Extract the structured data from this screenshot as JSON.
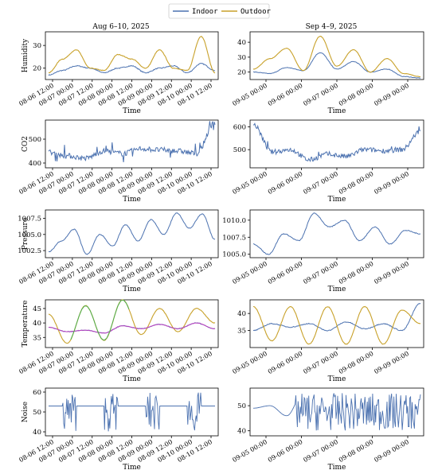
{
  "legend": [
    {
      "name": "Indoor",
      "color": "#4c72b0"
    },
    {
      "name": "Outdoor",
      "color": "#c8a12a"
    }
  ],
  "colors": {
    "indoor": "#4c72b0",
    "outdoor": "#c8a12a",
    "indoor_rolling": "#c040c0",
    "outdoor_rolling": "#4caf50"
  },
  "columns": [
    {
      "title": "Aug 6–10, 2025",
      "xlabel": "Time",
      "xticks": [
        "08-06 12:00",
        "08-07 00:00",
        "08-07 12:00",
        "08-08 00:00",
        "08-08 12:00",
        "08-09 00:00",
        "08-09 12:00",
        "08-10 00:00",
        "08-10 12:00"
      ]
    },
    {
      "title": "Sep 4–9, 2025",
      "xlabel": "Time",
      "xticks": [
        "09-05 00:00",
        "09-06 00:00",
        "09-07 00:00",
        "09-08 00:00",
        "09-09 00:00"
      ]
    }
  ],
  "rows": [
    {
      "ylabel": "Humidity",
      "left": {
        "ylim": [
          15,
          36
        ],
        "yticks": [
          "20",
          "30"
        ],
        "ytick_values": [
          20,
          30
        ]
      },
      "right": {
        "ylim": [
          15,
          47
        ],
        "yticks": [
          "20",
          "30",
          "40"
        ],
        "ytick_values": [
          20,
          30,
          40
        ]
      }
    },
    {
      "ylabel": "CO2",
      "left": {
        "ylim": [
          380,
          580
        ],
        "yticks": [
          "400",
          "500"
        ],
        "ytick_values": [
          400,
          500
        ]
      },
      "right": {
        "ylim": [
          420,
          630
        ],
        "yticks": [
          "500",
          "600"
        ],
        "ytick_values": [
          500,
          600
        ]
      }
    },
    {
      "ylabel": "Pressure",
      "left": {
        "ylim": [
          1001.4,
          1008.8
        ],
        "yticks": [
          "1002.5",
          "1005.0",
          "1007.5"
        ],
        "ytick_values": [
          1002.5,
          1005.0,
          1007.5
        ]
      },
      "right": {
        "ylim": [
          1004.5,
          1011.5
        ],
        "yticks": [
          "1005.0",
          "1007.5",
          "1010.0"
        ],
        "ytick_values": [
          1005.0,
          1007.5,
          1010.0
        ]
      }
    },
    {
      "ylabel": "Temperature",
      "left": {
        "ylim": [
          31.5,
          48
        ],
        "yticks": [
          "35",
          "40",
          "45"
        ],
        "ytick_values": [
          35,
          40,
          45
        ]
      },
      "right": {
        "ylim": [
          30,
          44
        ],
        "yticks": [
          "35",
          "40"
        ],
        "ytick_values": [
          35,
          40
        ]
      }
    },
    {
      "ylabel": "Noise",
      "left": {
        "ylim": [
          38,
          62
        ],
        "yticks": [
          "40",
          "50",
          "60"
        ],
        "ytick_values": [
          40,
          50,
          60
        ]
      },
      "right": {
        "ylim": [
          38,
          57
        ],
        "yticks": [
          "40",
          "50"
        ],
        "ytick_values": [
          40,
          50
        ]
      }
    }
  ],
  "chart_data": [
    {
      "type": "line",
      "ylabel": "Humidity",
      "xlabel": "Time",
      "title": "Aug 6–10, 2025",
      "x": [
        "08-06 18:00",
        "08-07 06:00",
        "08-07 12:00",
        "08-07 18:00",
        "08-08 06:00",
        "08-08 12:00",
        "08-08 18:00",
        "08-09 06:00",
        "08-09 12:00",
        "08-09 18:00",
        "08-10 06:00",
        "08-10 12:00",
        "08-10 18:00"
      ],
      "series": [
        {
          "name": "Indoor",
          "values": [
            17,
            19,
            21,
            20,
            18,
            20,
            21,
            18,
            20,
            21,
            18,
            22,
            19
          ]
        },
        {
          "name": "Outdoor",
          "values": [
            18,
            24,
            28,
            20,
            19,
            26,
            24,
            20,
            28,
            20,
            19,
            34,
            18
          ]
        }
      ]
    },
    {
      "type": "line",
      "ylabel": "Humidity",
      "xlabel": "Time",
      "title": "Sep 4–9, 2025",
      "x": [
        "09-04 18:00",
        "09-05 06:00",
        "09-05 18:00",
        "09-06 06:00",
        "09-06 18:00",
        "09-07 06:00",
        "09-07 18:00",
        "09-08 06:00",
        "09-08 18:00",
        "09-09 06:00",
        "09-09 18:00"
      ],
      "series": [
        {
          "name": "Indoor",
          "values": [
            20,
            19,
            23,
            21,
            33,
            22,
            27,
            20,
            22,
            17,
            16
          ]
        },
        {
          "name": "Outdoor",
          "values": [
            22,
            29,
            36,
            21,
            44,
            24,
            35,
            20,
            29,
            19,
            17
          ]
        }
      ]
    },
    {
      "type": "line",
      "ylabel": "CO2",
      "xlabel": "Time",
      "title": "Aug 6–10, 2025",
      "series": [
        {
          "name": "Indoor",
          "values": [
            445,
            430,
            420,
            450,
            440,
            460,
            455,
            450,
            440,
            570
          ]
        }
      ]
    },
    {
      "type": "line",
      "ylabel": "CO2",
      "xlabel": "Time",
      "title": "Sep 4–9, 2025",
      "series": [
        {
          "name": "Indoor",
          "values": [
            610,
            490,
            500,
            455,
            480,
            470,
            500,
            495,
            500,
            580
          ]
        }
      ]
    },
    {
      "type": "line",
      "ylabel": "Pressure",
      "xlabel": "Time",
      "title": "Aug 6–10, 2025",
      "series": [
        {
          "name": "Indoor",
          "values": [
            1002.3,
            1004.0,
            1005.8,
            1001.9,
            1005.0,
            1003.2,
            1006.5,
            1004.0,
            1007.3,
            1005.0,
            1008.3,
            1006.0,
            1008.2,
            1004.2
          ]
        }
      ]
    },
    {
      "type": "line",
      "ylabel": "Pressure",
      "xlabel": "Time",
      "title": "Sep 4–9, 2025",
      "series": [
        {
          "name": "Indoor",
          "values": [
            1006.5,
            1005.0,
            1008.0,
            1007.0,
            1011.0,
            1009.0,
            1010.0,
            1007.0,
            1009.0,
            1006.5,
            1008.5,
            1008.0
          ]
        }
      ]
    },
    {
      "type": "line",
      "ylabel": "Temperature",
      "xlabel": "Time",
      "title": "Aug 6–10, 2025",
      "series": [
        {
          "name": "Indoor",
          "values": [
            38.5,
            37.0,
            37.5,
            36.5,
            39.0,
            38.0,
            39.5,
            38.0,
            40.0,
            38.0
          ]
        },
        {
          "name": "Outdoor",
          "values": [
            43,
            33,
            46,
            34,
            48,
            36,
            45,
            37,
            45,
            40
          ]
        }
      ]
    },
    {
      "type": "line",
      "ylabel": "Temperature",
      "xlabel": "Time",
      "title": "Sep 4–9, 2025",
      "series": [
        {
          "name": "Indoor",
          "values": [
            35,
            37,
            36,
            37,
            35,
            37.5,
            35.5,
            37,
            35,
            43
          ]
        },
        {
          "name": "Outdoor",
          "values": [
            42,
            32,
            42,
            31,
            42,
            31,
            42,
            31,
            41,
            37
          ]
        }
      ]
    },
    {
      "type": "line",
      "ylabel": "Noise",
      "xlabel": "Time",
      "title": "Aug 6–10, 2025",
      "series": [
        {
          "name": "Indoor",
          "values": [
            53,
            53,
            45,
            53,
            52,
            53,
            53,
            43,
            53,
            43,
            53,
            61
          ]
        }
      ]
    },
    {
      "type": "line",
      "ylabel": "Noise",
      "xlabel": "Time",
      "title": "Sep 4–9, 2025",
      "series": [
        {
          "name": "Indoor",
          "values": [
            49,
            50,
            46,
            55,
            42,
            55,
            40,
            55,
            41,
            55,
            42
          ]
        }
      ]
    }
  ]
}
